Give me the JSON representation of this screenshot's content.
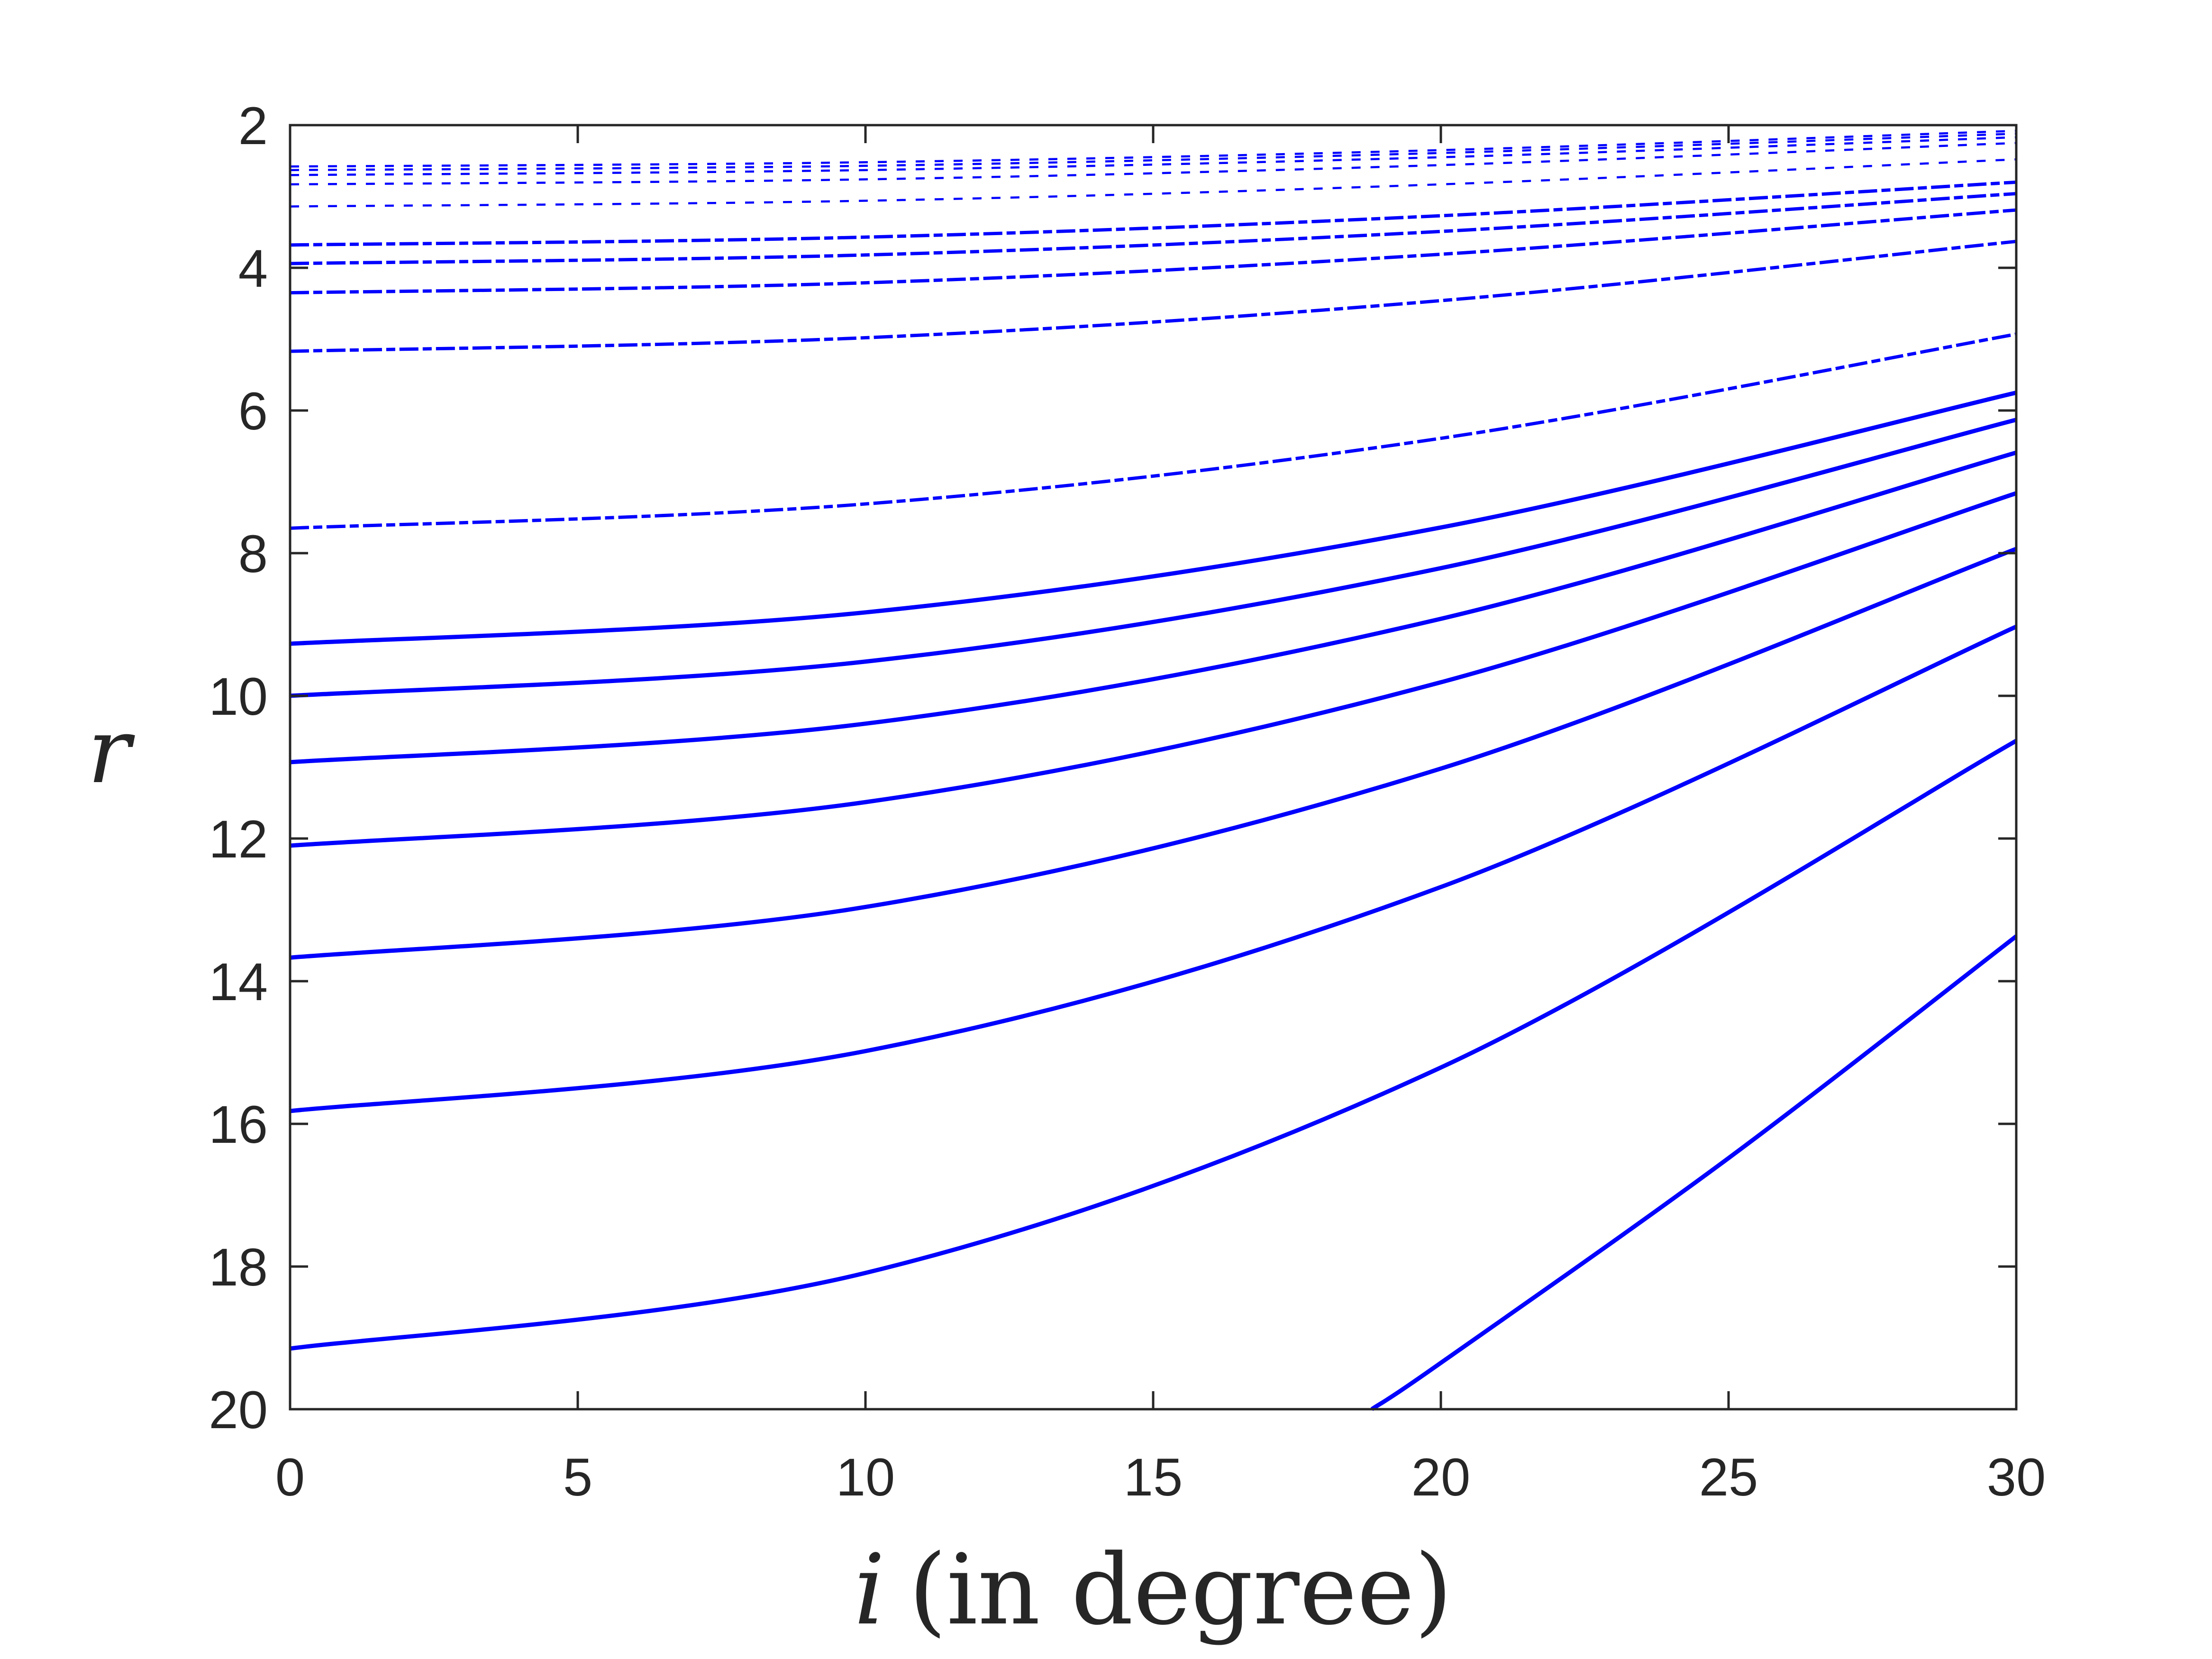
{
  "chart_data": {
    "type": "line",
    "title": "",
    "xlabel_var": "i",
    "xlabel_rest": "(in degree)",
    "ylabel": "r",
    "xlim": [
      0,
      30
    ],
    "ylim": [
      2,
      20
    ],
    "y_reversed": true,
    "grid": false,
    "legend": "none",
    "line_color": "#0000ff",
    "axis_color": "#262626",
    "xticks": [
      "0",
      "5",
      "10",
      "15",
      "20",
      "25",
      "30"
    ],
    "yticks": [
      "2",
      "4",
      "6",
      "8",
      "10",
      "12",
      "14",
      "16",
      "18",
      "20"
    ],
    "series": [
      {
        "style": "dotted",
        "x": [
          0,
          10,
          20,
          30
        ],
        "y": [
          2.58,
          2.52,
          2.35,
          2.08
        ]
      },
      {
        "style": "dotted",
        "x": [
          0,
          10,
          20,
          30
        ],
        "y": [
          2.63,
          2.57,
          2.39,
          2.12
        ]
      },
      {
        "style": "dotted",
        "x": [
          0,
          10,
          20,
          30
        ],
        "y": [
          2.7,
          2.63,
          2.45,
          2.17
        ]
      },
      {
        "style": "dotted",
        "x": [
          0,
          10,
          20,
          30
        ],
        "y": [
          2.83,
          2.76,
          2.56,
          2.25
        ]
      },
      {
        "style": "dotted",
        "x": [
          0,
          10,
          20,
          30
        ],
        "y": [
          3.14,
          3.06,
          2.83,
          2.48
        ]
      },
      {
        "style": "dashdot",
        "x": [
          0,
          10,
          20,
          30
        ],
        "y": [
          3.68,
          3.57,
          3.27,
          2.8
        ]
      },
      {
        "style": "dashdot",
        "x": [
          0,
          10,
          20,
          30
        ],
        "y": [
          3.94,
          3.82,
          3.49,
          2.96
        ]
      },
      {
        "style": "dashdot",
        "x": [
          0,
          10,
          20,
          30
        ],
        "y": [
          4.35,
          4.21,
          3.81,
          3.19
        ]
      },
      {
        "style": "dashdot",
        "x": [
          0,
          10,
          20,
          30
        ],
        "y": [
          5.17,
          4.98,
          4.46,
          3.63
        ]
      },
      {
        "style": "dashdot",
        "x": [
          0,
          10,
          20,
          30
        ],
        "y": [
          7.65,
          7.31,
          6.39,
          4.93
        ]
      },
      {
        "style": "solid",
        "x": [
          0,
          10,
          20,
          30
        ],
        "y": [
          9.27,
          8.83,
          7.64,
          5.75
        ]
      },
      {
        "style": "solid",
        "x": [
          0,
          10,
          20,
          30
        ],
        "y": [
          10.0,
          9.52,
          8.21,
          6.13
        ]
      },
      {
        "style": "solid",
        "x": [
          0,
          10,
          20,
          30
        ],
        "y": [
          10.93,
          10.39,
          8.92,
          6.59
        ]
      },
      {
        "style": "solid",
        "x": [
          0,
          10,
          20,
          30
        ],
        "y": [
          12.1,
          11.49,
          9.81,
          7.16
        ]
      },
      {
        "style": "solid",
        "x": [
          0,
          10,
          20,
          30
        ],
        "y": [
          13.67,
          12.96,
          11.02,
          7.94
        ]
      },
      {
        "style": "solid",
        "x": [
          0,
          10,
          20,
          30
        ],
        "y": [
          15.82,
          14.98,
          12.68,
          9.03
        ]
      },
      {
        "style": "solid",
        "x": [
          0,
          10,
          20,
          30
        ],
        "y": [
          19.15,
          18.09,
          15.21,
          10.63
        ]
      },
      {
        "style": "solid",
        "x": [
          18.8,
          20,
          25,
          30
        ],
        "y": [
          20.0,
          19.35,
          16.48,
          13.37
        ]
      }
    ]
  }
}
